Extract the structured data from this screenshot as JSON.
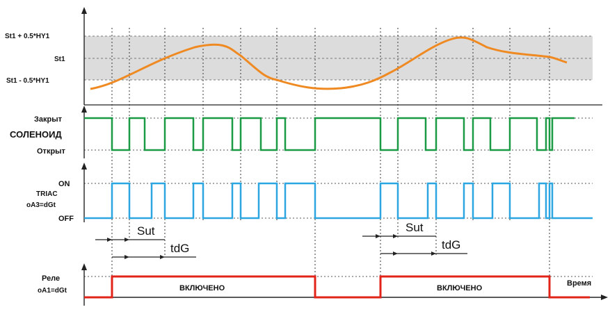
{
  "hysteresis": {
    "upper_label": "St1 + 0.5*HY1",
    "mid_label": "St1",
    "lower_label": "St1 - 0.5*HY1"
  },
  "solenoid": {
    "closed_label": "Закрыт",
    "name_label": "СОЛЕНОИД",
    "open_label": "Открыт"
  },
  "triac": {
    "name_line1": "TRIAC",
    "name_line2": "oA3=dGt",
    "on_label": "ON",
    "off_label": "OFF"
  },
  "timing": {
    "sut_label": "Sut",
    "tdg_label": "tdG"
  },
  "relay": {
    "name_line1": "Реле",
    "name_line2": "oA1=dGt",
    "on_text_1": "ВКЛЮЧЕНО",
    "on_text_2": "ВКЛЮЧЕНО"
  },
  "axis": {
    "time_label": "Время"
  },
  "colors": {
    "curve": "#ef8a23",
    "solenoid": "#1b9a46",
    "triac": "#2ba6e0",
    "relay": "#e2231a",
    "band": "#dcdcdc"
  }
}
